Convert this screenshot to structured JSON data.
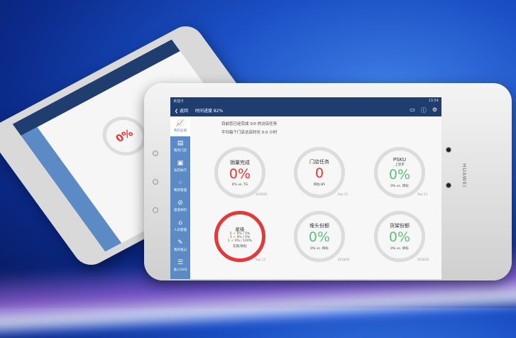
{
  "status": {
    "carrier": "未插卡",
    "time": "13:54"
  },
  "nav": {
    "back": "返回",
    "progress": "时间进度 82%",
    "icons": [
      "message-icon",
      "help-icon",
      "settings-icon"
    ]
  },
  "sidebar": {
    "items": [
      {
        "label": "我的业绩",
        "icon": "chart-icon",
        "active": true
      },
      {
        "label": "我的门店",
        "icon": "store-icon"
      },
      {
        "label": "访店执行",
        "icon": "clipboard-icon"
      },
      {
        "label": "物资管理",
        "icon": "grid-icon"
      },
      {
        "label": "渠道材料",
        "icon": "paperclip-icon"
      },
      {
        "label": "人员管理",
        "icon": "people-icon"
      },
      {
        "label": "我的笔记",
        "icon": "note-icon"
      },
      {
        "label": "进入SVIS",
        "icon": "list-icon"
      }
    ]
  },
  "info": {
    "line1": "目前您已经完成 0/0 的访店任务",
    "line2": "平均每个门店访店时长 0.0 小时"
  },
  "cards": [
    {
      "title": "销量完成",
      "value": "0%",
      "label": "0% vs. TG",
      "date": "2016/02"
    },
    {
      "title": "门店任务",
      "value": "0",
      "label": "目标:85",
      "date": "Sep 13"
    },
    {
      "title": "PSKU",
      "subtitle": "上架率",
      "value": "0%",
      "label": "0% vs. 目标",
      "date": "Sep 13"
    },
    {
      "title": "星级",
      "rows": [
        "5",
        "0% / 0%",
        "3",
        "0% / 0%",
        "1",
        "0% / 100%"
      ],
      "label": "实际/目标",
      "date": "Sep 13"
    },
    {
      "title": "堆头份额",
      "value": "0%",
      "label": "0% vs. 目标",
      "date": "2016/02"
    },
    {
      "title": "货架份额",
      "value": "0%",
      "label": "0% vs. 目标",
      "date": "2016/02"
    }
  ],
  "brand": "HUAWEI",
  "colors": {
    "navbar": "#1f3d6e",
    "sidebar": "#5b8ac4",
    "red": "#e33333",
    "green": "#5cc27a"
  }
}
